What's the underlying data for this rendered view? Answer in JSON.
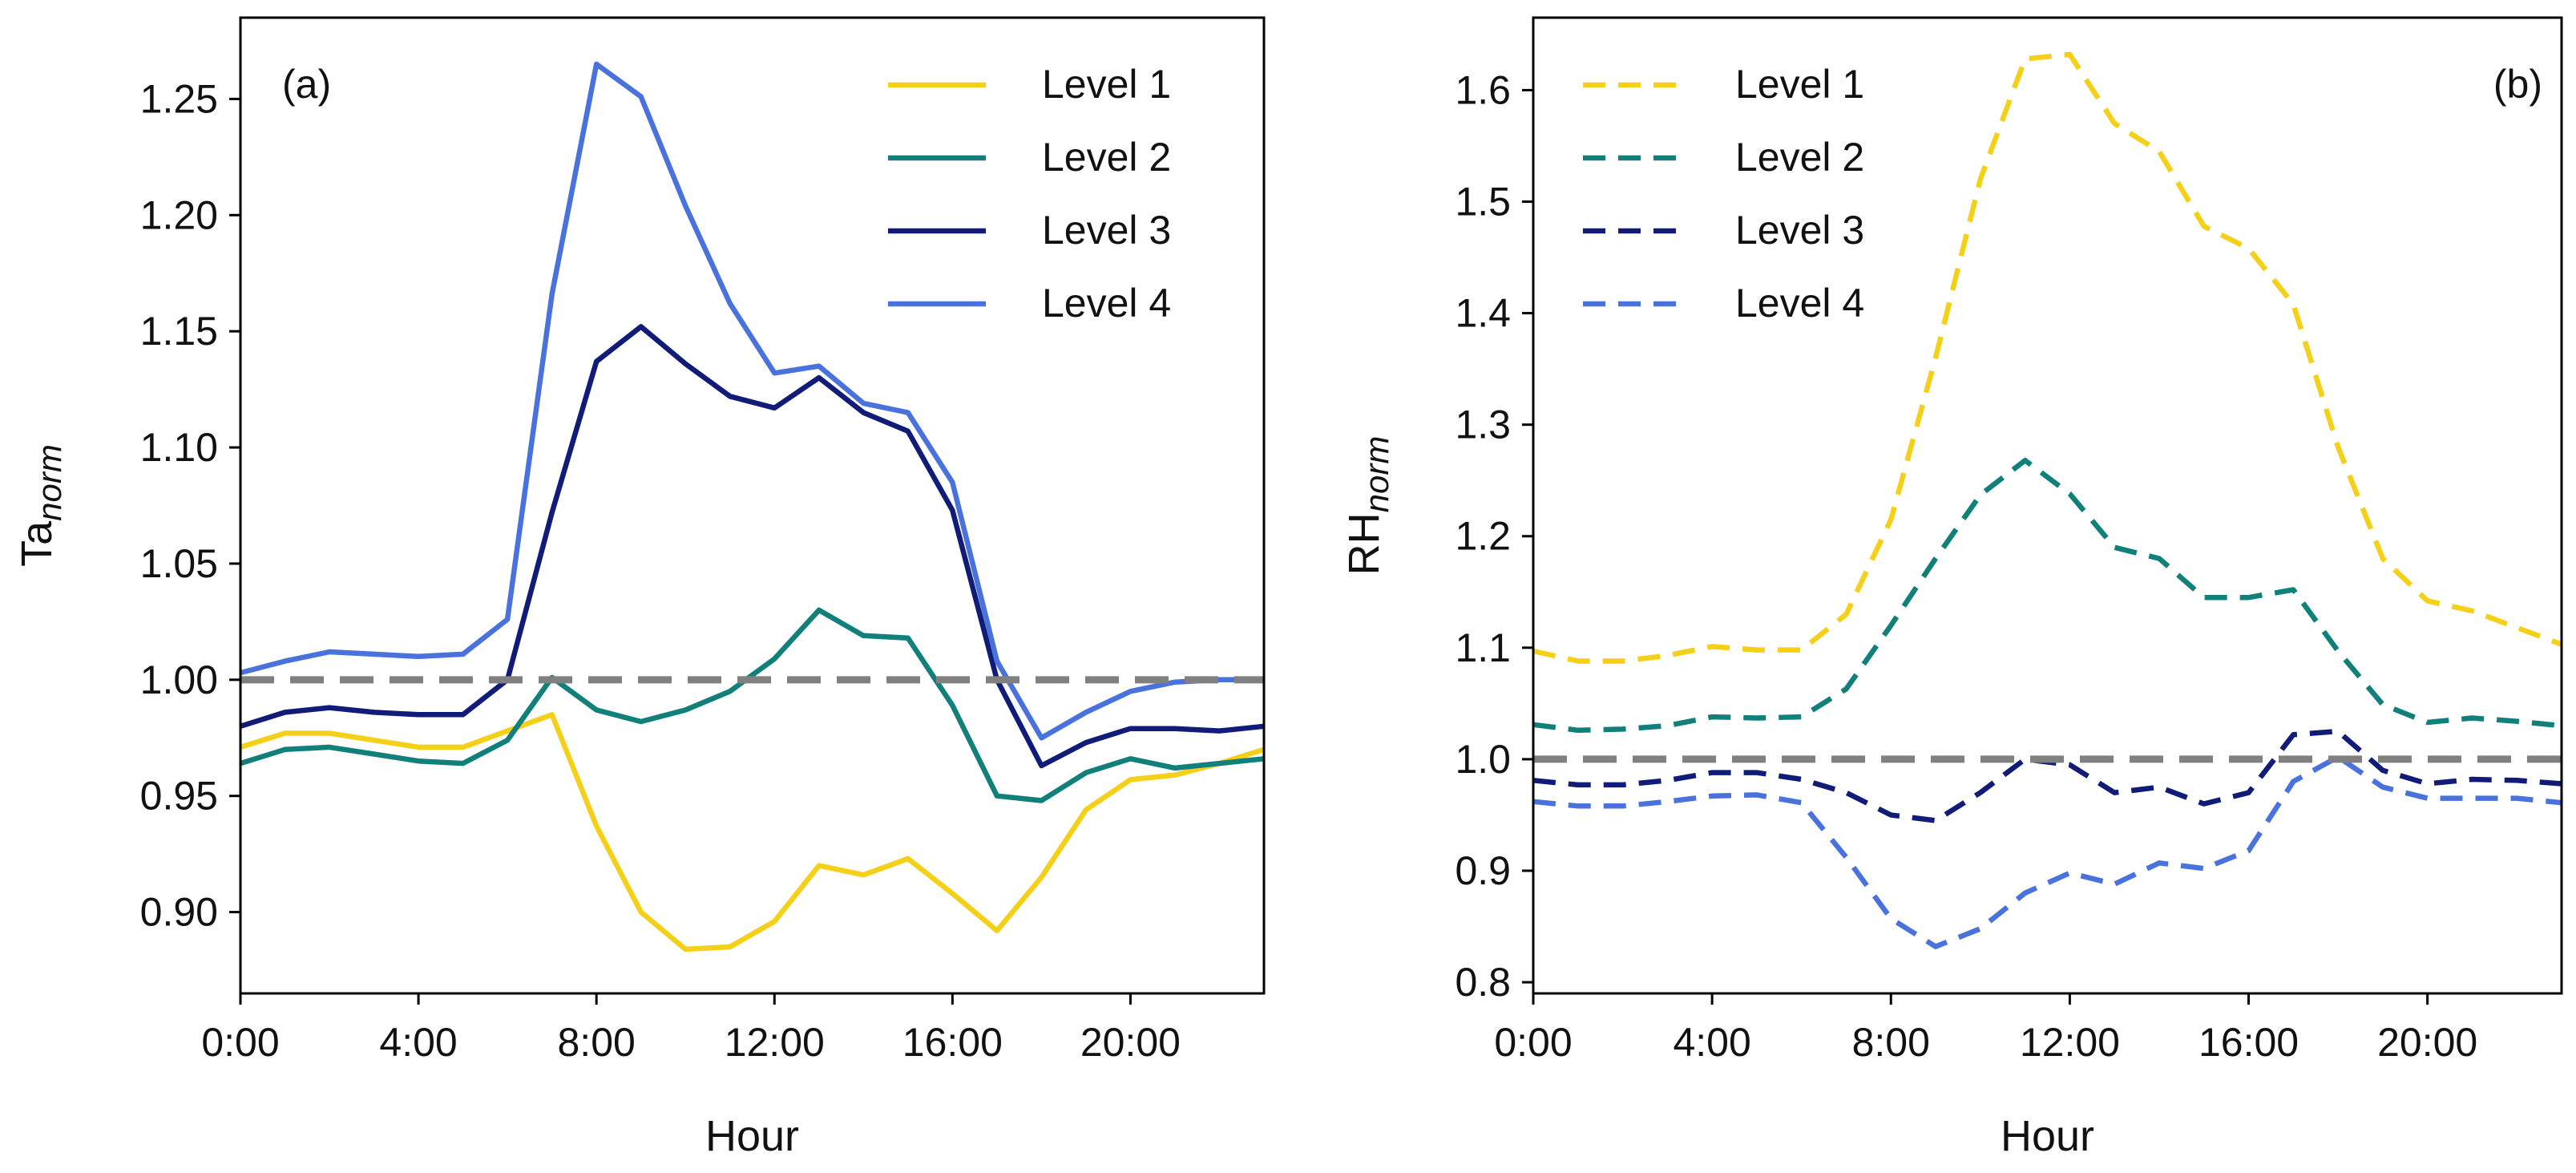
{
  "colors": {
    "level1": "#F5D018",
    "level2": "#12807A",
    "level3": "#101C78",
    "level4": "#4A72DC",
    "reference": "#808080"
  },
  "chart_data": [
    {
      "type": "line",
      "panel_label": "(a)",
      "title": "",
      "xlabel": "Hour",
      "ylabel_main": "Ta",
      "ylabel_sub": "norm",
      "x": [
        0,
        1,
        2,
        3,
        4,
        5,
        6,
        7,
        8,
        9,
        10,
        11,
        12,
        13,
        14,
        15,
        16,
        17,
        18,
        19,
        20,
        21,
        22,
        23
      ],
      "xlim": [
        0,
        23
      ],
      "ylim": [
        0.865,
        1.285
      ],
      "xticks": [
        0,
        4,
        8,
        12,
        16,
        20
      ],
      "xtick_labels": [
        "0:00",
        "4:00",
        "8:00",
        "12:00",
        "16:00",
        "20:00"
      ],
      "yticks": [
        0.9,
        0.95,
        1.0,
        1.05,
        1.1,
        1.15,
        1.2,
        1.25
      ],
      "ytick_labels": [
        "0.90",
        "0.95",
        "1.00",
        "1.05",
        "1.10",
        "1.15",
        "1.20",
        "1.25"
      ],
      "reference_line": 1.0,
      "line_style": "solid",
      "legend_position": "top-right",
      "series": [
        {
          "name": "Level 1",
          "color_key": "level1",
          "values": [
            0.971,
            0.977,
            0.977,
            0.974,
            0.971,
            0.971,
            0.978,
            0.985,
            0.937,
            0.9,
            0.884,
            0.885,
            0.896,
            0.92,
            0.916,
            0.923,
            0.908,
            0.892,
            0.915,
            0.944,
            0.957,
            0.959,
            0.964,
            0.97
          ]
        },
        {
          "name": "Level 2",
          "color_key": "level2",
          "values": [
            0.964,
            0.97,
            0.971,
            0.968,
            0.965,
            0.964,
            0.974,
            1.001,
            0.987,
            0.982,
            0.987,
            0.995,
            1.009,
            1.03,
            1.019,
            1.018,
            0.989,
            0.95,
            0.948,
            0.96,
            0.966,
            0.962,
            0.964,
            0.966
          ]
        },
        {
          "name": "Level 3",
          "color_key": "level3",
          "values": [
            0.98,
            0.986,
            0.988,
            0.986,
            0.985,
            0.985,
            1.0,
            1.072,
            1.137,
            1.152,
            1.136,
            1.122,
            1.117,
            1.13,
            1.115,
            1.107,
            1.073,
            1.0,
            0.963,
            0.973,
            0.979,
            0.979,
            0.978,
            0.98
          ]
        },
        {
          "name": "Level 4",
          "color_key": "level4",
          "values": [
            1.003,
            1.008,
            1.012,
            1.011,
            1.01,
            1.011,
            1.026,
            1.166,
            1.265,
            1.251,
            1.204,
            1.162,
            1.132,
            1.135,
            1.119,
            1.115,
            1.085,
            1.008,
            0.975,
            0.986,
            0.995,
            0.999,
            1.0,
            1.0
          ]
        }
      ]
    },
    {
      "type": "line",
      "panel_label": "(b)",
      "title": "",
      "xlabel": "Hour",
      "ylabel_main": "RH",
      "ylabel_sub": "norm",
      "x": [
        0,
        1,
        2,
        3,
        4,
        5,
        6,
        7,
        8,
        9,
        10,
        11,
        12,
        13,
        14,
        15,
        16,
        17,
        18,
        19,
        20,
        21,
        22,
        23
      ],
      "xlim": [
        0,
        23
      ],
      "ylim": [
        0.79,
        1.665
      ],
      "xticks": [
        0,
        4,
        8,
        12,
        16,
        20
      ],
      "xtick_labels": [
        "0:00",
        "4:00",
        "8:00",
        "12:00",
        "16:00",
        "20:00"
      ],
      "yticks": [
        0.8,
        0.9,
        1.0,
        1.1,
        1.2,
        1.3,
        1.4,
        1.5,
        1.6
      ],
      "ytick_labels": [
        "0.8",
        "0.9",
        "1.0",
        "1.1",
        "1.2",
        "1.3",
        "1.4",
        "1.5",
        "1.6"
      ],
      "reference_line": 1.0,
      "line_style": "dashed",
      "legend_position": "top-left",
      "series": [
        {
          "name": "Level 1",
          "color_key": "level1",
          "values": [
            1.097,
            1.088,
            1.088,
            1.093,
            1.101,
            1.098,
            1.098,
            1.13,
            1.215,
            1.36,
            1.52,
            1.628,
            1.632,
            1.57,
            1.545,
            1.478,
            1.458,
            1.408,
            1.28,
            1.18,
            1.142,
            1.133,
            1.118,
            1.103
          ]
        },
        {
          "name": "Level 2",
          "color_key": "level2",
          "values": [
            1.031,
            1.026,
            1.027,
            1.03,
            1.038,
            1.037,
            1.038,
            1.063,
            1.12,
            1.18,
            1.237,
            1.268,
            1.238,
            1.19,
            1.18,
            1.145,
            1.145,
            1.152,
            1.097,
            1.049,
            1.033,
            1.037,
            1.034,
            1.03
          ]
        },
        {
          "name": "Level 3",
          "color_key": "level3",
          "values": [
            0.981,
            0.977,
            0.977,
            0.981,
            0.988,
            0.988,
            0.982,
            0.97,
            0.95,
            0.945,
            0.97,
            1.0,
            0.995,
            0.97,
            0.975,
            0.96,
            0.97,
            1.022,
            1.025,
            0.99,
            0.978,
            0.982,
            0.981,
            0.978
          ]
        },
        {
          "name": "Level 4",
          "color_key": "level4",
          "values": [
            0.962,
            0.958,
            0.958,
            0.962,
            0.967,
            0.968,
            0.961,
            0.912,
            0.857,
            0.832,
            0.848,
            0.88,
            0.898,
            0.888,
            0.907,
            0.902,
            0.918,
            0.98,
            1.002,
            0.975,
            0.965,
            0.965,
            0.965,
            0.961
          ]
        }
      ]
    }
  ]
}
